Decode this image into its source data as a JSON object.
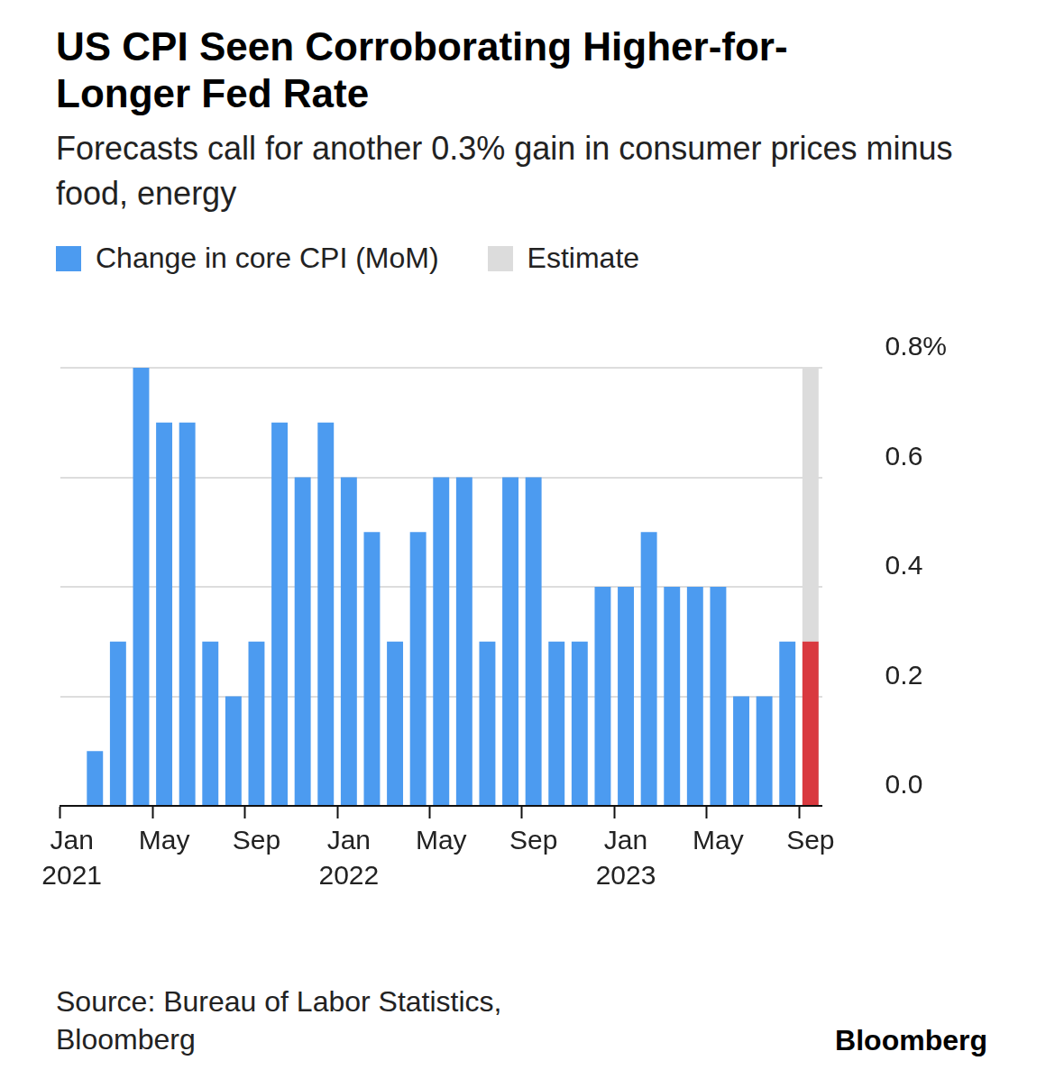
{
  "chart_data": {
    "type": "bar",
    "title": "US CPI Seen Corroborating Higher-for-Longer Fed Rate",
    "subtitle": "Forecasts call for another 0.3% gain in consumer prices minus food, energy",
    "source": "Source: Bureau of Labor Statistics, Bloomberg",
    "credit": "Bloomberg",
    "categories": [
      "Jan 2021",
      null,
      null,
      null,
      "May",
      null,
      null,
      null,
      "Sep",
      null,
      null,
      null,
      "Jan 2022",
      null,
      null,
      null,
      "May",
      null,
      null,
      null,
      "Sep",
      null,
      null,
      null,
      "Jan 2023",
      null,
      null,
      null,
      "May",
      null,
      null,
      null,
      "Sep"
    ],
    "series": [
      {
        "name": "Change in core CPI (MoM)",
        "color": "#4c9bf0",
        "colors": [
          "#4c9bf0",
          "#4c9bf0",
          "#4c9bf0",
          "#4c9bf0",
          "#4c9bf0",
          "#4c9bf0",
          "#4c9bf0",
          "#4c9bf0",
          "#4c9bf0",
          "#4c9bf0",
          "#4c9bf0",
          "#4c9bf0",
          "#4c9bf0",
          "#4c9bf0",
          "#4c9bf0",
          "#4c9bf0",
          "#4c9bf0",
          "#4c9bf0",
          "#4c9bf0",
          "#4c9bf0",
          "#4c9bf0",
          "#4c9bf0",
          "#4c9bf0",
          "#4c9bf0",
          "#4c9bf0",
          "#4c9bf0",
          "#4c9bf0",
          "#4c9bf0",
          "#4c9bf0",
          "#4c9bf0",
          "#4c9bf0",
          "#4c9bf0",
          "#d9393f"
        ],
        "values": [
          0.0,
          0.1,
          0.3,
          0.8,
          0.7,
          0.7,
          0.3,
          0.2,
          0.3,
          0.7,
          0.6,
          0.7,
          0.6,
          0.5,
          0.3,
          0.5,
          0.6,
          0.6,
          0.3,
          0.6,
          0.6,
          0.3,
          0.3,
          0.4,
          0.4,
          0.5,
          0.4,
          0.4,
          0.4,
          0.2,
          0.2,
          0.3,
          0.3
        ]
      },
      {
        "name": "Estimate",
        "color": "#dcdcdc",
        "values": [
          null,
          null,
          null,
          null,
          null,
          null,
          null,
          null,
          null,
          null,
          null,
          null,
          null,
          null,
          null,
          null,
          null,
          null,
          null,
          null,
          null,
          null,
          null,
          null,
          null,
          null,
          null,
          null,
          null,
          null,
          null,
          null,
          0.8
        ]
      }
    ],
    "ylim": [
      0,
      0.8
    ],
    "yticks": [
      {
        "value": 0,
        "label": "0.0"
      },
      {
        "value": 0.2,
        "label": "0.2"
      },
      {
        "value": 0.4,
        "label": "0.4"
      },
      {
        "value": 0.6,
        "label": "0.6"
      },
      {
        "value": 0.8,
        "label": "0.8%"
      }
    ],
    "grid": true,
    "legend": "top-left"
  }
}
